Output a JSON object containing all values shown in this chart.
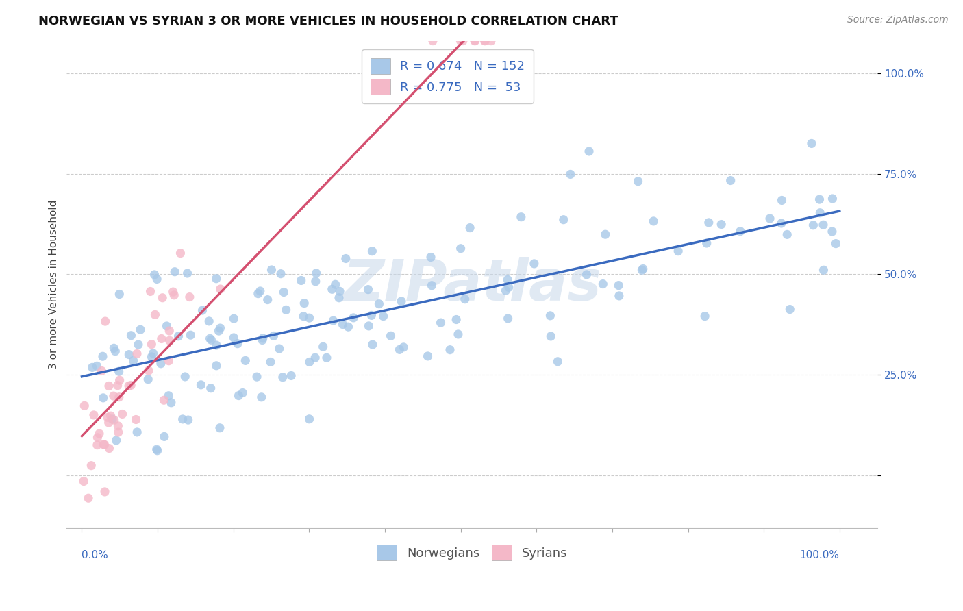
{
  "title": "NORWEGIAN VS SYRIAN 3 OR MORE VEHICLES IN HOUSEHOLD CORRELATION CHART",
  "source": "Source: ZipAtlas.com",
  "ylabel": "3 or more Vehicles in Household",
  "norwegian_color": "#a8c8e8",
  "syrian_color": "#f4b8c8",
  "norwegian_line_color": "#3a6abf",
  "syrian_line_color": "#d45070",
  "background_color": "#ffffff",
  "grid_color": "#cccccc",
  "title_fontsize": 13,
  "axis_label_fontsize": 11,
  "tick_fontsize": 11,
  "legend_fontsize": 13,
  "watermark": "ZIPatlas",
  "xlim": [
    -0.02,
    1.05
  ],
  "ylim": [
    -0.13,
    1.08
  ],
  "ytick_vals": [
    0.0,
    0.25,
    0.5,
    0.75,
    1.0
  ],
  "ytick_labels": [
    "",
    "25.0%",
    "50.0%",
    "75.0%",
    "100.0%"
  ]
}
